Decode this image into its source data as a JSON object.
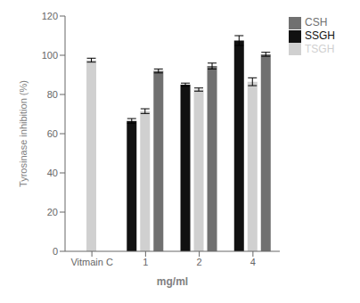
{
  "chart_data": {
    "type": "bar",
    "categories": [
      "Vitmain C",
      "1",
      "2",
      "4"
    ],
    "series": [
      {
        "name": "SSGH",
        "color": "#111111",
        "values": [
          null,
          66.5,
          85.0,
          107.5
        ],
        "errors": [
          null,
          1.2,
          0.8,
          2.5
        ]
      },
      {
        "name": "TSGH",
        "color": "#d0d0d0",
        "values": [
          97.5,
          71.5,
          82.5,
          86.5
        ],
        "errors": [
          1.0,
          1.2,
          0.8,
          2.0
        ]
      },
      {
        "name": "CSH",
        "color": "#707070",
        "values": [
          null,
          92.0,
          94.5,
          100.5
        ],
        "errors": [
          null,
          1.0,
          1.5,
          1.0
        ]
      }
    ],
    "xlabel": "mg/ml",
    "ylabel": "Tyrosinase inhibition (%)",
    "ylim": [
      0,
      120
    ],
    "yticks": [
      0,
      20,
      40,
      60,
      80,
      100,
      120
    ],
    "grid": false,
    "legend": "upper right"
  }
}
